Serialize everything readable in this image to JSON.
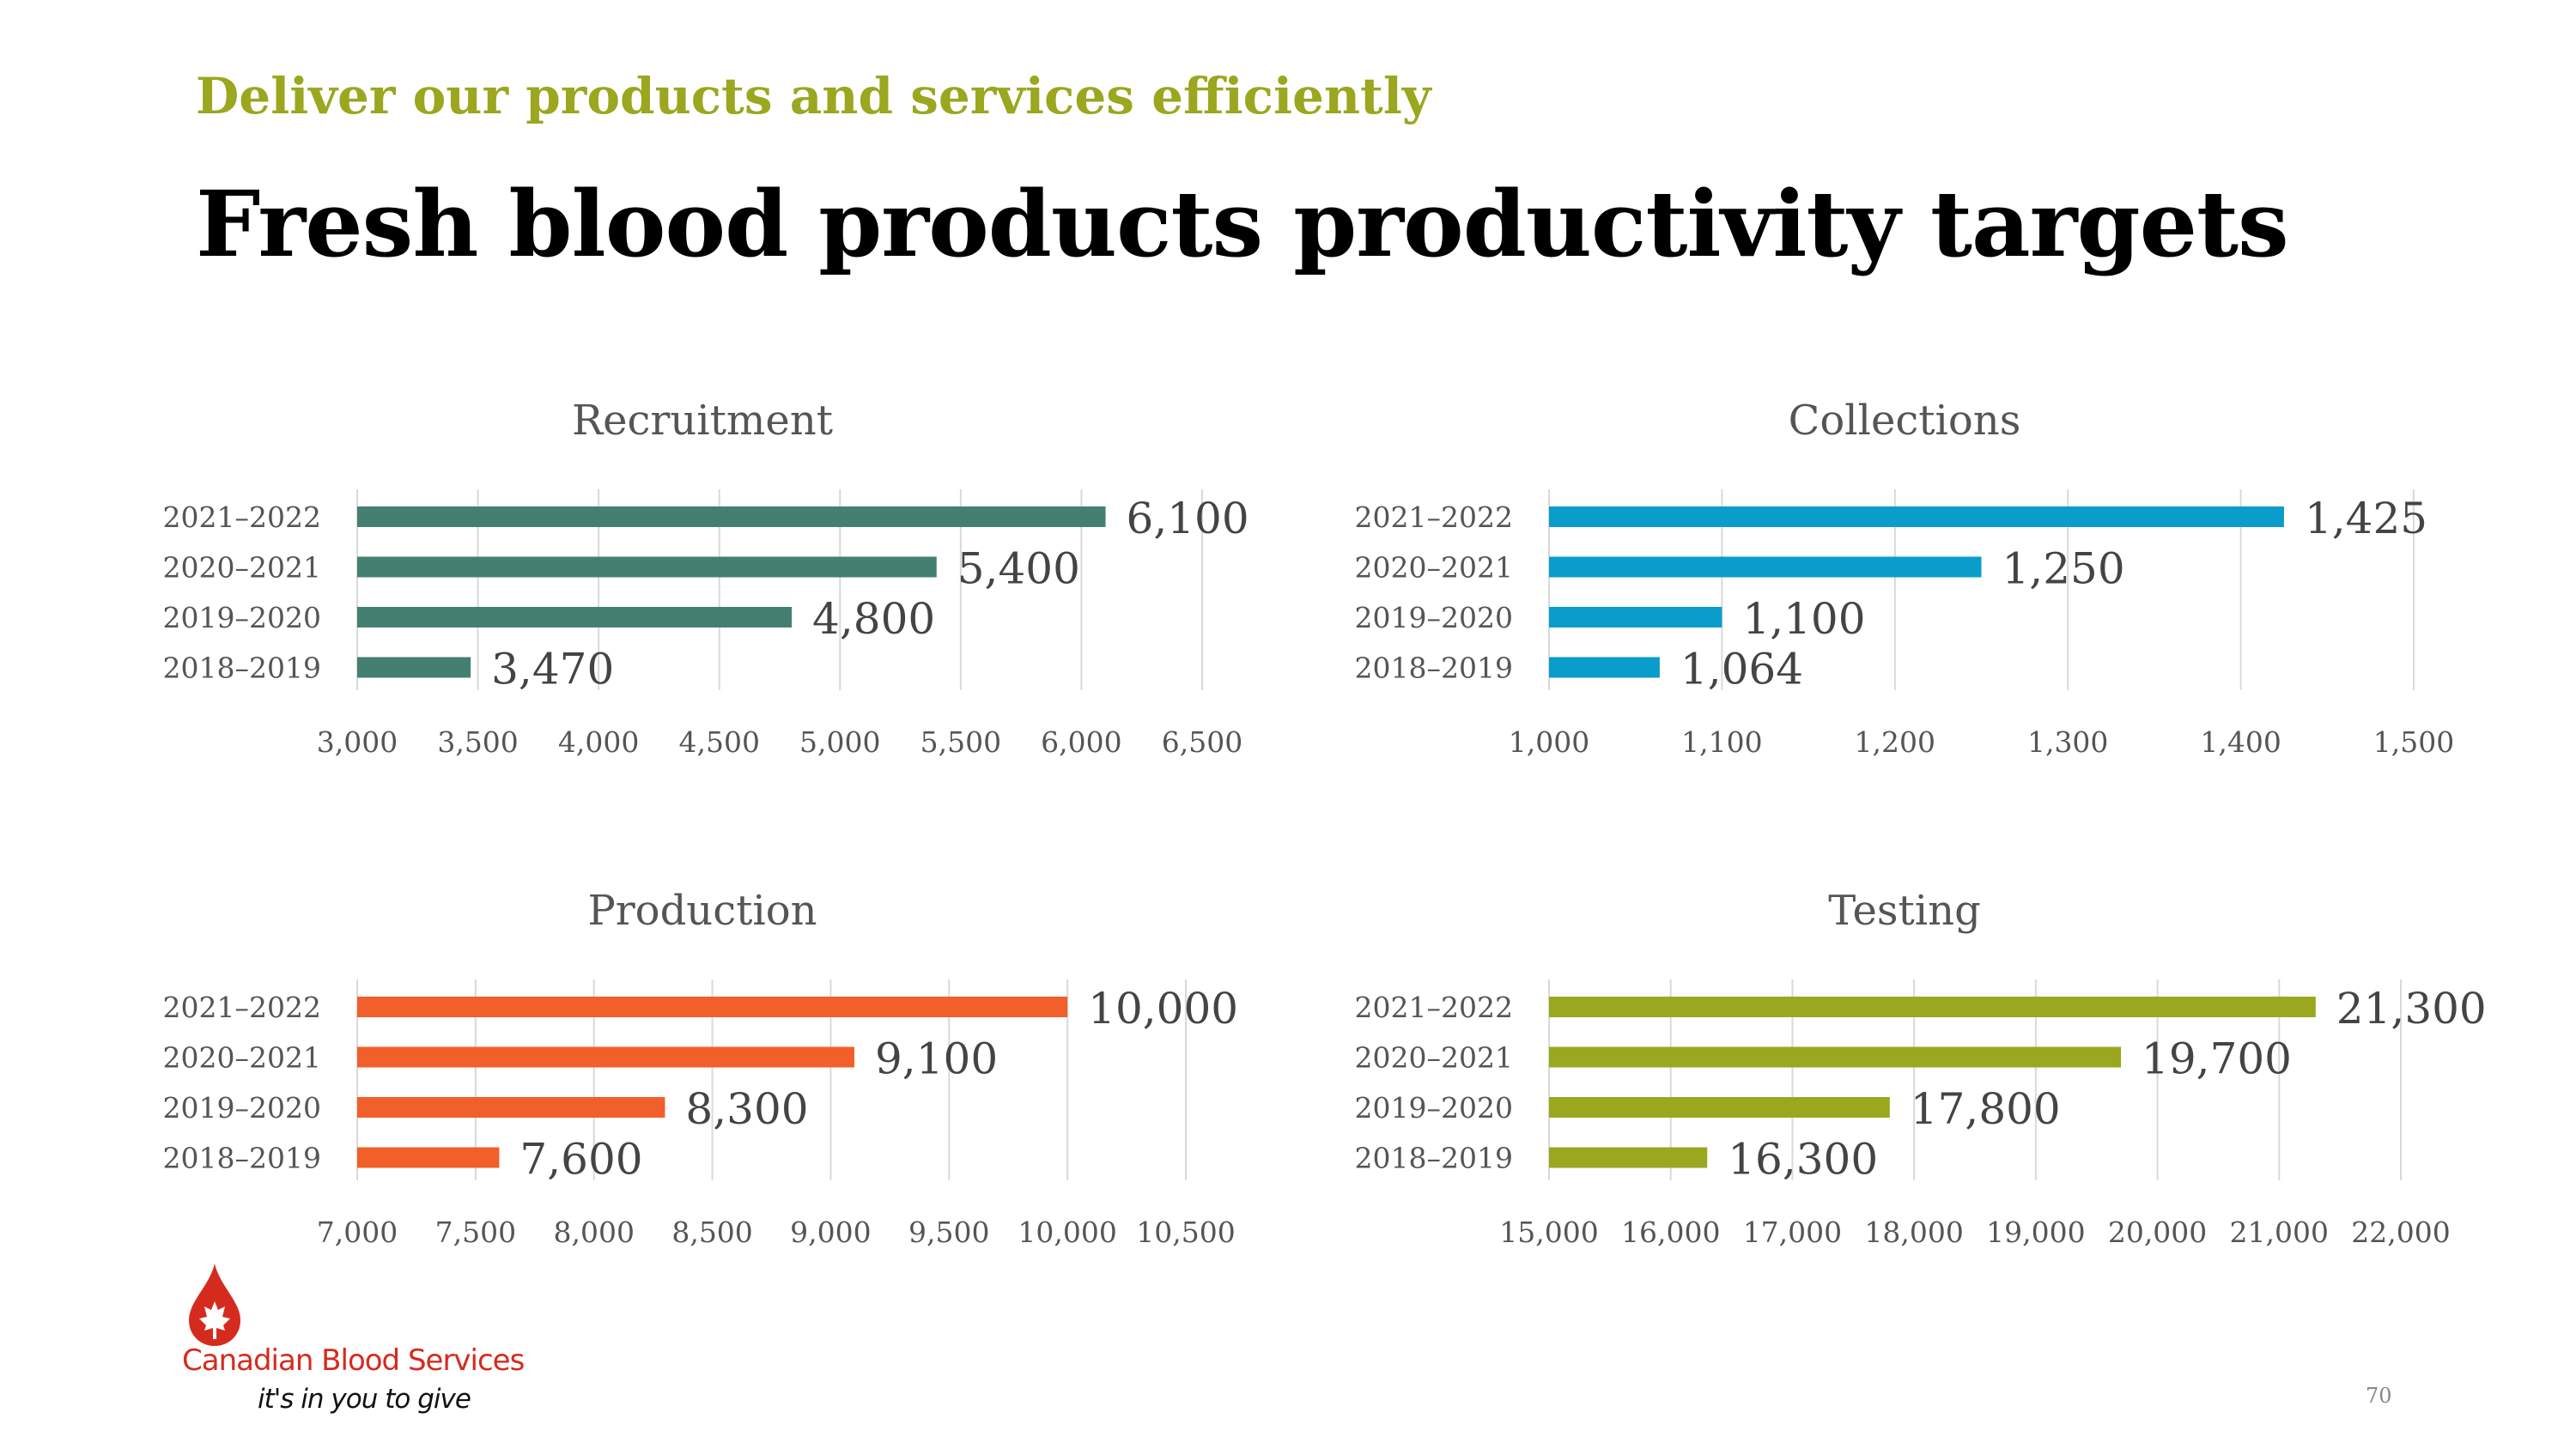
{
  "slide": {
    "subtitle": "Deliver our products and services efficiently",
    "title": "Fresh blood products productivity targets",
    "page_number": "70"
  },
  "logo": {
    "name": "Canadian Blood Services",
    "tagline": "it's in you to give",
    "colors": {
      "red": "#d52b1e"
    }
  },
  "chart_data": [
    {
      "type": "bar",
      "orientation": "horizontal",
      "title": "Recruitment",
      "categories": [
        "2021–2022",
        "2020–2021",
        "2019–2020",
        "2018–2019"
      ],
      "values": [
        6100,
        5400,
        4800,
        3470
      ],
      "value_labels": [
        "6,100",
        "5,400",
        "4,800",
        "3,470"
      ],
      "xlim": [
        3000,
        6500
      ],
      "ticks": [
        "3,000",
        "3,500",
        "4,000",
        "4,500",
        "5,000",
        "5,500",
        "6,000",
        "6,500"
      ],
      "color": "#447f72",
      "grid": true
    },
    {
      "type": "bar",
      "orientation": "horizontal",
      "title": "Collections",
      "categories": [
        "2021–2022",
        "2020–2021",
        "2019–2020",
        "2018–2019"
      ],
      "values": [
        1425,
        1250,
        1100,
        1064
      ],
      "value_labels": [
        "1,425",
        "1,250",
        "1,100",
        "1,064"
      ],
      "xlim": [
        1000,
        1500
      ],
      "ticks": [
        "1,000",
        "1,100",
        "1,200",
        "1,300",
        "1,400",
        "1,500"
      ],
      "color": "#0a9ccb",
      "grid": true
    },
    {
      "type": "bar",
      "orientation": "horizontal",
      "title": "Production",
      "categories": [
        "2021–2022",
        "2020–2021",
        "2019–2020",
        "2018–2019"
      ],
      "values": [
        10000,
        9100,
        8300,
        7600
      ],
      "value_labels": [
        "10,000",
        "9,100",
        "8,300",
        "7,600"
      ],
      "xlim": [
        7000,
        10500
      ],
      "ticks": [
        "7,000",
        "7,500",
        "8,000",
        "8,500",
        "9,000",
        "9,500",
        "10,000",
        "10,500"
      ],
      "color": "#f15f2a",
      "grid": true
    },
    {
      "type": "bar",
      "orientation": "horizontal",
      "title": "Testing",
      "categories": [
        "2021–2022",
        "2020–2021",
        "2019–2020",
        "2018–2019"
      ],
      "values": [
        21300,
        19700,
        17800,
        16300
      ],
      "value_labels": [
        "21,300",
        "19,700",
        "17,800",
        "16,300"
      ],
      "xlim": [
        15000,
        22000
      ],
      "ticks": [
        "15,000",
        "16,000",
        "17,000",
        "18,000",
        "19,000",
        "20,000",
        "21,000",
        "22,000"
      ],
      "color": "#9aa71f",
      "grid": true
    }
  ]
}
